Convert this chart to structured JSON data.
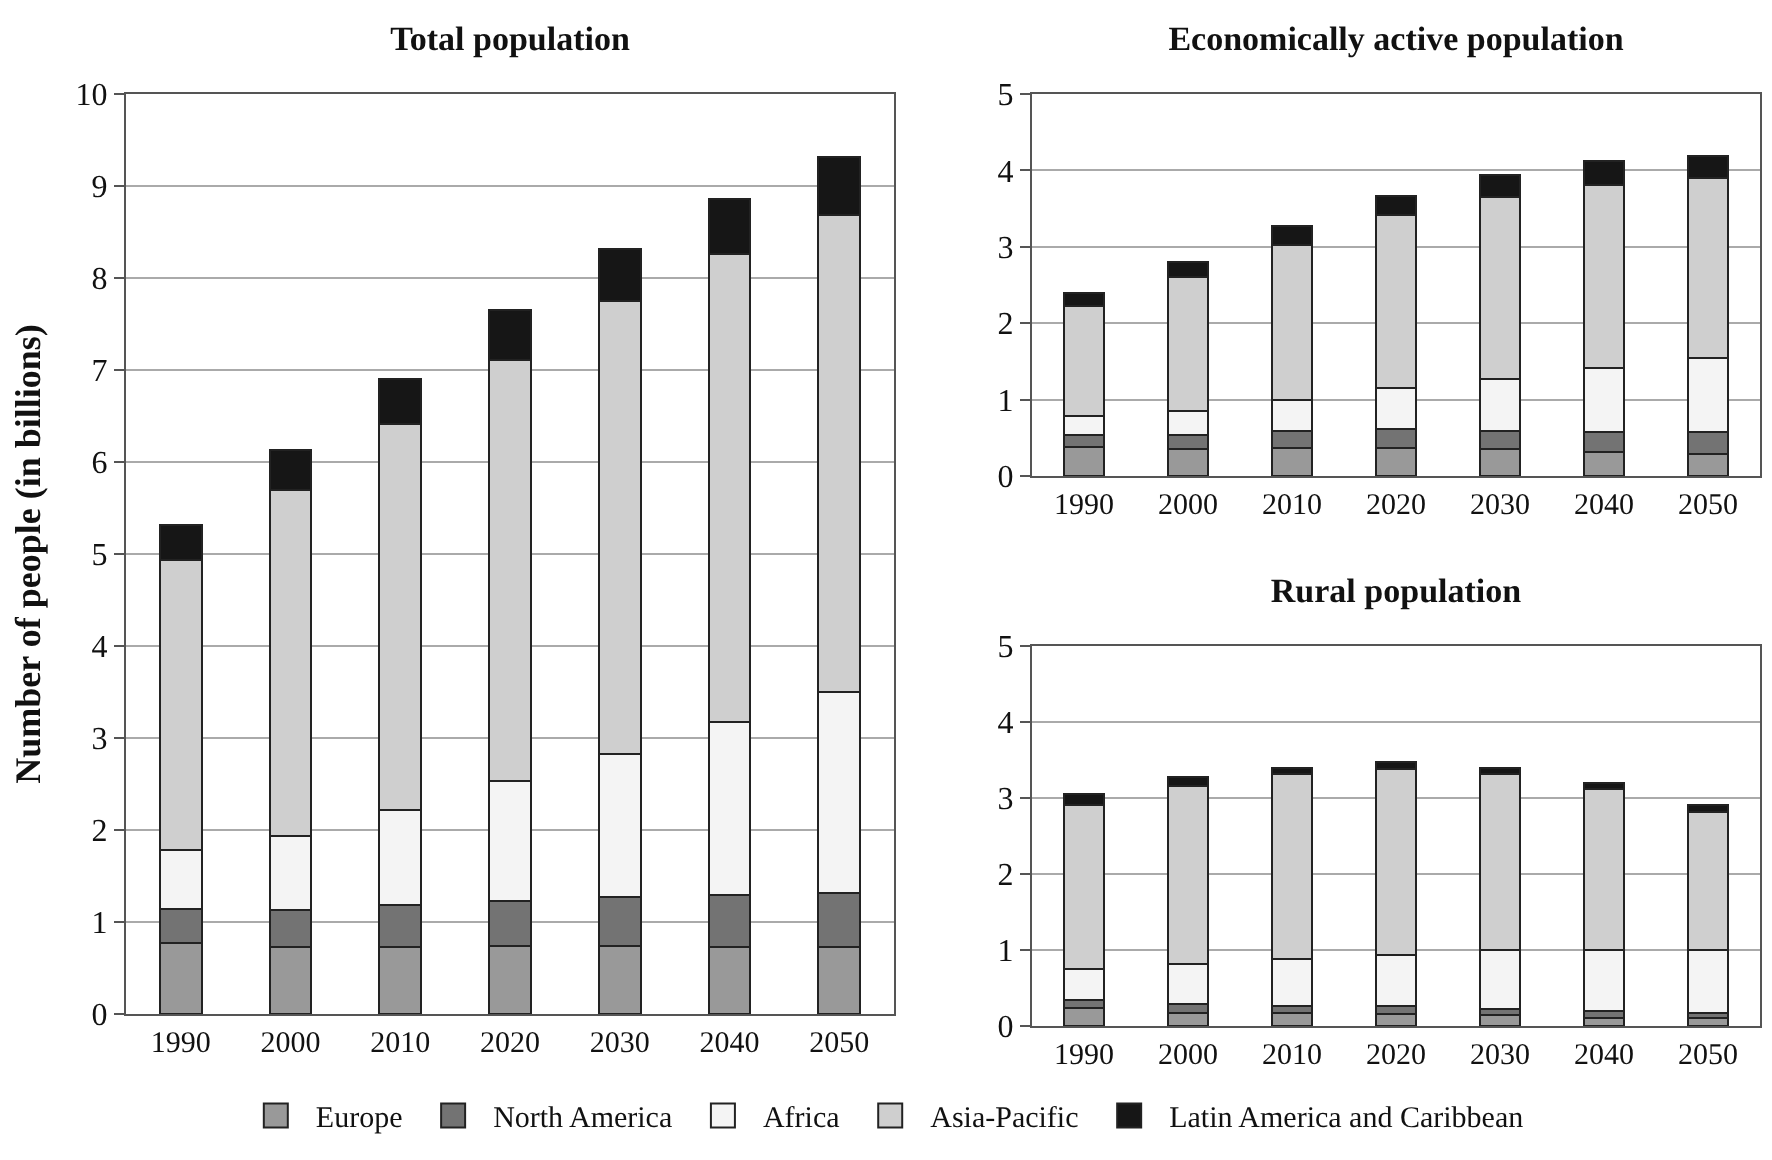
{
  "chart_data": [
    {
      "type": "bar",
      "title": "Total population",
      "ylabel": "Number of people (in billions)",
      "categories": [
        "1990",
        "2000",
        "2010",
        "2020",
        "2030",
        "2040",
        "2050"
      ],
      "stacked": true,
      "ylim": [
        0,
        10
      ],
      "yticks": [
        0,
        1,
        2,
        3,
        4,
        5,
        6,
        7,
        8,
        9,
        10
      ],
      "grid": "y",
      "legend": "bottom",
      "series": [
        {
          "name": "Europe",
          "color": "#999999",
          "values": [
            0.77,
            0.73,
            0.73,
            0.74,
            0.74,
            0.73,
            0.73
          ]
        },
        {
          "name": "North America",
          "color": "#737373",
          "values": [
            0.37,
            0.4,
            0.46,
            0.49,
            0.53,
            0.56,
            0.58
          ]
        },
        {
          "name": "Africa",
          "color": "#f4f4f4",
          "values": [
            0.64,
            0.81,
            1.03,
            1.3,
            1.56,
            1.88,
            2.19
          ]
        },
        {
          "name": "Asia-Pacific",
          "color": "#cfcfcf",
          "values": [
            3.15,
            3.76,
            4.19,
            4.58,
            4.92,
            5.09,
            5.19
          ]
        },
        {
          "name": "Latin America and Caribbean",
          "color": "#161616",
          "values": [
            0.38,
            0.43,
            0.49,
            0.54,
            0.57,
            0.6,
            0.62
          ]
        }
      ]
    },
    {
      "type": "bar",
      "title": "Economically active population",
      "categories": [
        "1990",
        "2000",
        "2010",
        "2020",
        "2030",
        "2040",
        "2050"
      ],
      "stacked": true,
      "ylim": [
        0,
        5
      ],
      "yticks": [
        0,
        1,
        2,
        3,
        4,
        5
      ],
      "grid": "y",
      "series": [
        {
          "color": "#999999",
          "values": [
            0.38,
            0.35,
            0.37,
            0.37,
            0.35,
            0.32,
            0.29
          ]
        },
        {
          "color": "#737373",
          "values": [
            0.16,
            0.19,
            0.22,
            0.25,
            0.24,
            0.26,
            0.29
          ]
        },
        {
          "color": "#f4f4f4",
          "values": [
            0.24,
            0.31,
            0.4,
            0.53,
            0.68,
            0.84,
            0.97
          ]
        },
        {
          "color": "#cfcfcf",
          "values": [
            1.45,
            1.76,
            2.04,
            2.26,
            2.38,
            2.39,
            2.35
          ]
        },
        {
          "color": "#161616",
          "values": [
            0.17,
            0.19,
            0.24,
            0.26,
            0.29,
            0.31,
            0.29
          ]
        }
      ]
    },
    {
      "type": "bar",
      "title": "Rural population",
      "categories": [
        "1990",
        "2000",
        "2010",
        "2020",
        "2030",
        "2040",
        "2050"
      ],
      "stacked": true,
      "ylim": [
        0,
        5
      ],
      "yticks": [
        0,
        1,
        2,
        3,
        4,
        5
      ],
      "grid": "y",
      "series": [
        {
          "color": "#999999",
          "values": [
            0.24,
            0.17,
            0.17,
            0.16,
            0.14,
            0.11,
            0.1
          ]
        },
        {
          "color": "#737373",
          "values": [
            0.1,
            0.12,
            0.09,
            0.1,
            0.08,
            0.09,
            0.07
          ]
        },
        {
          "color": "#f4f4f4",
          "values": [
            0.41,
            0.52,
            0.62,
            0.68,
            0.78,
            0.8,
            0.83
          ]
        },
        {
          "color": "#cfcfcf",
          "values": [
            2.16,
            2.35,
            2.43,
            2.44,
            2.31,
            2.12,
            1.82
          ]
        },
        {
          "color": "#161616",
          "values": [
            0.14,
            0.12,
            0.08,
            0.09,
            0.08,
            0.08,
            0.09
          ]
        }
      ]
    }
  ]
}
